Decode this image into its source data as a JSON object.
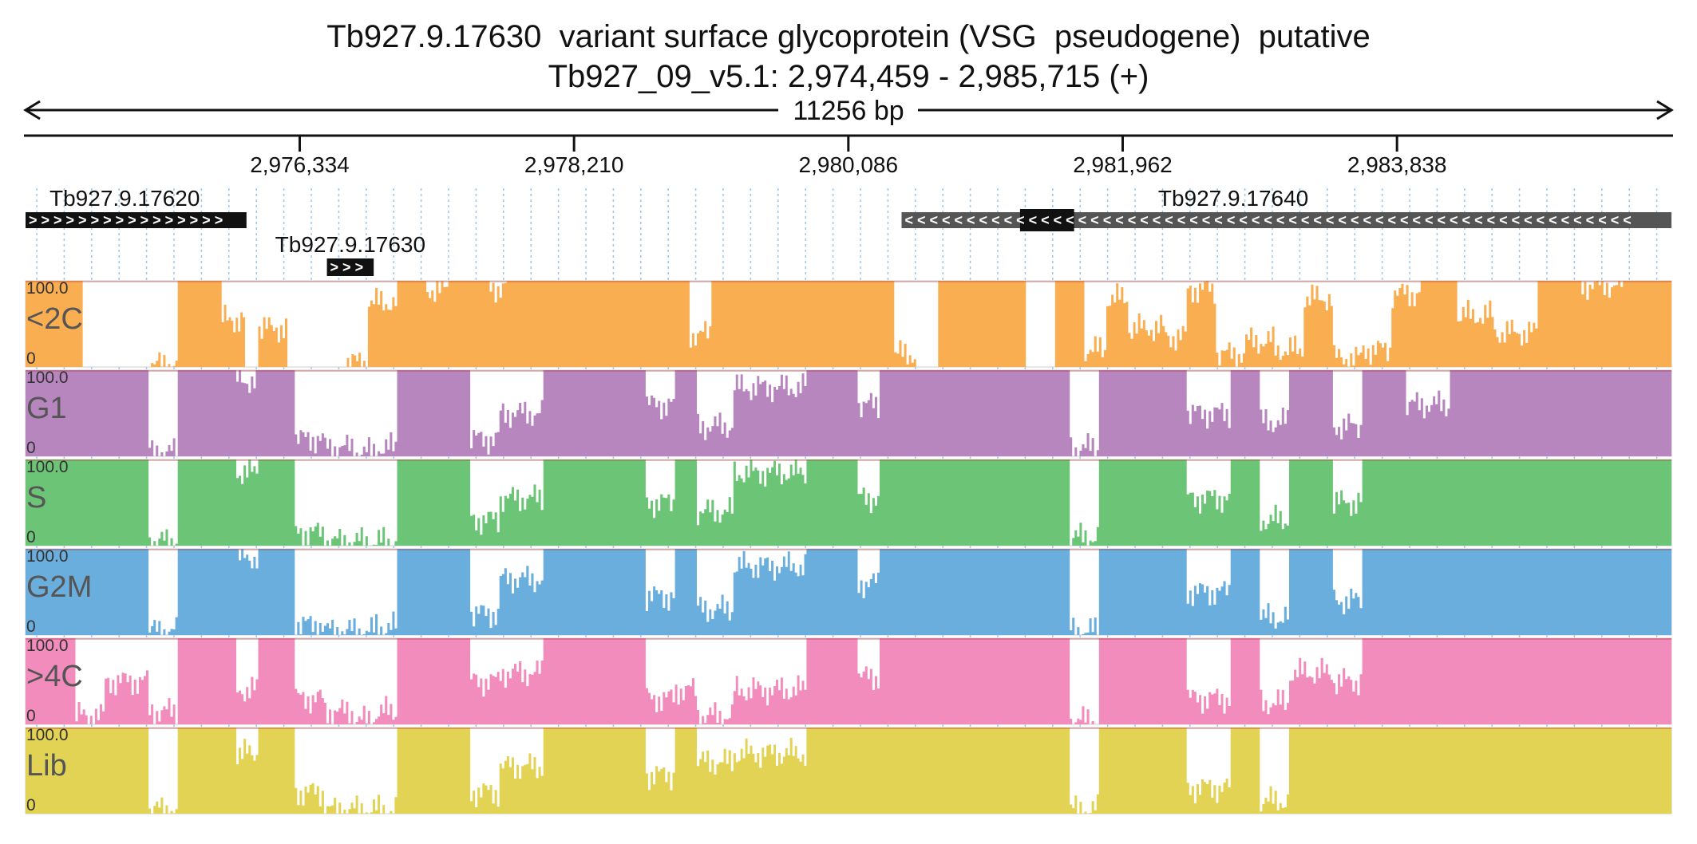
{
  "header": {
    "title": "Tb927.9.17630  variant surface glycoprotein (VSG  pseudogene)  putative",
    "subtitle": "Tb927_09_v5.1: 2,974,459 - 2,985,715 (+)"
  },
  "ruler": {
    "length_label": "11256 bp",
    "start": 2974459,
    "end": 2985715,
    "ticks": [
      "2,976,334",
      "2,978,210",
      "2,980,086",
      "2,981,962",
      "2,983,838"
    ]
  },
  "genes": [
    {
      "id": "Tb927.9.17620",
      "start": 2974459,
      "end": 2975970,
      "strand": "+",
      "row": 0
    },
    {
      "id": "Tb927.9.17630",
      "start": 2976520,
      "end": 2976840,
      "strand": "+",
      "row": 1,
      "highlight": true
    },
    {
      "id": "Tb927.9.17640",
      "start": 2980450,
      "end": 2985715,
      "strand": "-",
      "row": 0,
      "cds_start": 2981260,
      "cds_end": 2981630
    }
  ],
  "chart_data": {
    "type": "area",
    "x_range": [
      2974459,
      2985715
    ],
    "y_range": [
      0,
      100
    ],
    "ymax_label": "100.0",
    "ymin_label": "0",
    "tracks": [
      {
        "name": "<2C",
        "color": "#f9ae52",
        "breakpoints": [
          2974459,
          2974600,
          2974850,
          2975000,
          2975300,
          2975500,
          2975670,
          2975800,
          2975960,
          2976050,
          2976250,
          2976640,
          2976800,
          2977000,
          2977200,
          2977350,
          2977500,
          2977600,
          2977750,
          2977900,
          2978000,
          2978300,
          2978600,
          2978800,
          2979000,
          2979150,
          2979350,
          2979700,
          2980000,
          2980300,
          2980400,
          2980550,
          2980700,
          2980950,
          2981100,
          2981300,
          2981500,
          2981700,
          2981850,
          2982000,
          2982250,
          2982400,
          2982600,
          2982800,
          2983000,
          2983200,
          2983400,
          2983600,
          2983800,
          2984000,
          2984250,
          2984500,
          2984800,
          2985100,
          2985400,
          2985715
        ],
        "values": [
          100,
          100,
          0,
          0,
          3,
          100,
          100,
          55,
          0,
          45,
          0,
          5,
          75,
          100,
          90,
          100,
          100,
          92,
          100,
          100,
          100,
          100,
          100,
          100,
          38,
          100,
          100,
          100,
          100,
          100,
          15,
          0,
          100,
          100,
          100,
          0,
          100,
          20,
          80,
          45,
          35,
          90,
          15,
          30,
          20,
          80,
          10,
          20,
          85,
          100,
          60,
          40,
          100,
          95,
          100,
          100
        ]
      },
      {
        "name": "G1",
        "color": "#b786bf",
        "breakpoints": [
          2974459,
          2975300,
          2975500,
          2975700,
          2975900,
          2976050,
          2976300,
          2976500,
          2976700,
          2976850,
          2977000,
          2977300,
          2977500,
          2977700,
          2978000,
          2978500,
          2978700,
          2978900,
          2979050,
          2979300,
          2979800,
          2980000,
          2980150,
          2980300,
          2980500,
          2981000,
          2981300,
          2981600,
          2981800,
          2982000,
          2982400,
          2982700,
          2982900,
          2983100,
          2983400,
          2983600,
          2983900,
          2984200,
          2984500,
          2985000,
          2985300,
          2985715
        ],
        "values": [
          100,
          5,
          100,
          100,
          88,
          100,
          20,
          10,
          5,
          10,
          100,
          100,
          20,
          50,
          100,
          100,
          60,
          100,
          35,
          80,
          100,
          100,
          60,
          100,
          100,
          100,
          100,
          10,
          100,
          100,
          50,
          100,
          40,
          100,
          35,
          100,
          60,
          100,
          100,
          100,
          100,
          100
        ]
      },
      {
        "name": "S",
        "color": "#6cc577",
        "breakpoints": [
          2974459,
          2975300,
          2975500,
          2975700,
          2975900,
          2976050,
          2976300,
          2976500,
          2976700,
          2976850,
          2977000,
          2977300,
          2977500,
          2977700,
          2978000,
          2978500,
          2978700,
          2978900,
          2979050,
          2979300,
          2979800,
          2980000,
          2980150,
          2980300,
          2980500,
          2981000,
          2981300,
          2981600,
          2981800,
          2982000,
          2982400,
          2982700,
          2982900,
          2983100,
          2983400,
          2983600,
          2983900,
          2984200,
          2984500,
          2985000,
          2985300,
          2985715
        ],
        "values": [
          100,
          5,
          100,
          100,
          85,
          100,
          15,
          5,
          5,
          5,
          100,
          100,
          30,
          55,
          100,
          100,
          50,
          100,
          40,
          85,
          100,
          100,
          55,
          100,
          100,
          100,
          100,
          10,
          100,
          100,
          55,
          100,
          30,
          100,
          50,
          100,
          100,
          100,
          100,
          100,
          100,
          100
        ]
      },
      {
        "name": "G2M",
        "color": "#6aaede",
        "breakpoints": [
          2974459,
          2975300,
          2975500,
          2975700,
          2975900,
          2976050,
          2976300,
          2976500,
          2976700,
          2976850,
          2977000,
          2977300,
          2977500,
          2977700,
          2978000,
          2978500,
          2978700,
          2978900,
          2979050,
          2979300,
          2979800,
          2980000,
          2980150,
          2980300,
          2980500,
          2981000,
          2981300,
          2981600,
          2981800,
          2982000,
          2982400,
          2982700,
          2982900,
          2983100,
          2983400,
          2983600,
          2983900,
          2984200,
          2984500,
          2985000,
          2985300,
          2985715
        ],
        "values": [
          100,
          5,
          100,
          100,
          90,
          100,
          12,
          5,
          5,
          10,
          100,
          100,
          25,
          65,
          100,
          100,
          45,
          100,
          30,
          80,
          100,
          100,
          60,
          100,
          100,
          100,
          100,
          5,
          100,
          100,
          50,
          100,
          20,
          100,
          40,
          100,
          100,
          100,
          100,
          100,
          100,
          100
        ]
      },
      {
        "name": ">4C",
        "color": "#f28cbc",
        "breakpoints": [
          2974459,
          2974800,
          2975000,
          2975300,
          2975500,
          2975700,
          2975900,
          2976050,
          2976300,
          2976500,
          2976700,
          2976850,
          2977000,
          2977300,
          2977500,
          2977700,
          2978000,
          2978500,
          2978700,
          2978900,
          2979050,
          2979300,
          2979800,
          2980000,
          2980150,
          2980300,
          2980500,
          2981000,
          2981300,
          2981600,
          2981800,
          2982000,
          2982400,
          2982700,
          2982900,
          2983100,
          2983400,
          2983600,
          2983900,
          2984200,
          2984500,
          2985000,
          2985300,
          2985715
        ],
        "values": [
          100,
          10,
          50,
          15,
          100,
          100,
          40,
          100,
          30,
          15,
          5,
          15,
          100,
          100,
          50,
          60,
          100,
          100,
          30,
          40,
          10,
          40,
          100,
          100,
          55,
          100,
          100,
          100,
          100,
          5,
          100,
          100,
          30,
          100,
          25,
          60,
          50,
          100,
          100,
          100,
          100,
          100,
          100,
          100
        ]
      },
      {
        "name": "Lib",
        "color": "#e2d354",
        "breakpoints": [
          2974459,
          2975300,
          2975500,
          2975700,
          2975900,
          2976050,
          2976300,
          2976500,
          2976700,
          2976850,
          2977000,
          2977300,
          2977500,
          2977700,
          2978000,
          2978500,
          2978700,
          2978900,
          2979050,
          2979300,
          2979800,
          2980000,
          2980150,
          2980300,
          2980500,
          2981000,
          2981300,
          2981600,
          2981800,
          2982000,
          2982400,
          2982700,
          2982900,
          2983100,
          2983400,
          2983600,
          2983900,
          2984200,
          2984500,
          2985000,
          2985300,
          2985715
        ],
        "values": [
          100,
          5,
          100,
          100,
          70,
          100,
          25,
          5,
          5,
          5,
          100,
          100,
          25,
          55,
          100,
          100,
          45,
          100,
          60,
          70,
          100,
          100,
          100,
          100,
          100,
          100,
          100,
          5,
          100,
          100,
          30,
          100,
          15,
          100,
          100,
          100,
          100,
          100,
          100,
          100,
          100,
          100
        ]
      }
    ]
  }
}
